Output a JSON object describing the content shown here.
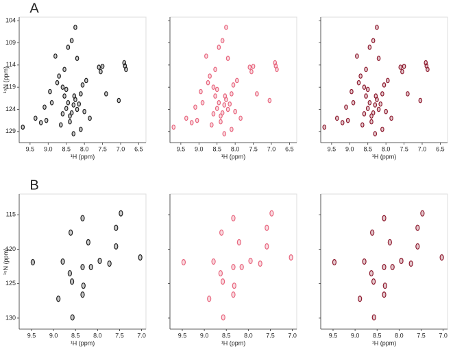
{
  "chart_data": [
    {
      "type": "scatter",
      "label": "A",
      "xlabel": "¹H (ppm)",
      "ylabel": "¹⁵N (ppm)",
      "xlim": [
        9.8,
        6.3
      ],
      "ylim": [
        131.5,
        103.2
      ],
      "xticks": [
        9.5,
        {
          "value": 9,
          "label": "9.0"
        },
        8.5,
        {
          "value": 8,
          "label": "8.0"
        },
        7.5,
        {
          "value": 7,
          "label": "7.0"
        },
        6.5
      ],
      "yticks": [
        104,
        109,
        114,
        119,
        124,
        129
      ],
      "series": [
        {
          "color": "#222222",
          "x": [
            8.45,
            8.3,
            8.25,
            8.2,
            8.35,
            8.4,
            8.5,
            8.15,
            8.1,
            8.55,
            8.6,
            8.05,
            7.95,
            8.7,
            8.8,
            9.05,
            9.2,
            9.35,
            9.7,
            8.9,
            8.65,
            8.0,
            7.85,
            7.6,
            7.55,
            7.5,
            6.9,
            6.85,
            6.88,
            8.25,
            8.35,
            8.45,
            8.2,
            8.55,
            8.75,
            8.3,
            8.1,
            7.4,
            7.05,
            8.6,
            8.4,
            8.95,
            9.1,
            8.5,
            8.28
          ],
          "values": [
            122.5,
            123.0,
            121.8,
            124.0,
            124.8,
            125.5,
            123.8,
            122.8,
            120.5,
            121.0,
            119.0,
            118.5,
            117.5,
            116.5,
            112.0,
            126.5,
            127.0,
            126.0,
            128.0,
            122.5,
            127.5,
            124.5,
            126.0,
            114.5,
            115.5,
            114.3,
            113.5,
            115.0,
            114.2,
            105.5,
            108.5,
            110.0,
            112.5,
            115.0,
            118.0,
            129.5,
            128.5,
            120.5,
            122.0,
            125.0,
            126.8,
            120.0,
            123.5,
            119.5,
            121.0
          ]
        },
        {
          "color": "#e8677f",
          "x": [
            8.45,
            8.3,
            8.25,
            8.2,
            8.35,
            8.4,
            8.5,
            8.15,
            8.1,
            8.55,
            8.6,
            8.05,
            7.95,
            8.7,
            8.8,
            9.05,
            9.2,
            9.35,
            9.7,
            8.9,
            8.65,
            8.0,
            7.85,
            7.6,
            7.55,
            7.5,
            6.9,
            6.85,
            6.88,
            8.25,
            8.35,
            8.45,
            8.2,
            8.55,
            8.75,
            8.3,
            8.1,
            7.4,
            7.05,
            8.6,
            8.4,
            8.95,
            9.1,
            8.5,
            8.28
          ],
          "values": [
            122.5,
            123.0,
            121.8,
            124.0,
            124.8,
            125.5,
            123.8,
            122.8,
            120.5,
            121.0,
            119.0,
            118.5,
            117.5,
            116.5,
            112.0,
            126.5,
            127.0,
            126.0,
            128.0,
            122.5,
            127.5,
            124.5,
            126.0,
            114.5,
            115.5,
            114.3,
            113.5,
            115.0,
            114.2,
            105.5,
            108.5,
            110.0,
            112.5,
            115.0,
            118.0,
            129.5,
            128.5,
            120.5,
            122.0,
            125.0,
            126.8,
            120.0,
            123.5,
            119.5,
            121.0
          ]
        },
        {
          "color": "#8e1c30",
          "x": [
            8.45,
            8.3,
            8.25,
            8.2,
            8.35,
            8.4,
            8.5,
            8.15,
            8.1,
            8.55,
            8.6,
            8.05,
            7.95,
            8.7,
            8.8,
            9.05,
            9.2,
            9.35,
            9.7,
            8.9,
            8.65,
            8.0,
            7.85,
            7.6,
            7.55,
            7.5,
            6.9,
            6.85,
            6.88,
            8.25,
            8.35,
            8.45,
            8.2,
            8.55,
            8.75,
            8.3,
            8.1,
            7.4,
            7.05,
            8.6,
            8.4,
            8.95,
            9.1,
            8.5,
            8.28
          ],
          "values": [
            122.5,
            123.0,
            121.8,
            124.0,
            124.8,
            125.5,
            123.8,
            122.8,
            120.5,
            121.0,
            119.0,
            118.5,
            117.5,
            116.5,
            112.0,
            126.5,
            127.0,
            126.0,
            128.0,
            122.5,
            127.5,
            124.5,
            126.0,
            114.5,
            115.5,
            114.3,
            113.5,
            115.0,
            114.2,
            105.5,
            108.5,
            110.0,
            112.5,
            115.0,
            118.0,
            129.5,
            128.5,
            120.5,
            122.0,
            125.0,
            126.8,
            120.0,
            123.5,
            119.5,
            121.0
          ]
        }
      ]
    },
    {
      "type": "scatter",
      "label": "B",
      "xlabel": "¹H (ppm)",
      "ylabel": "¹⁵N (ppm)",
      "xlim": [
        9.78,
        6.9
      ],
      "ylim": [
        131.6,
        112.0
      ],
      "xticks": [
        9.5,
        {
          "value": 9,
          "label": "9.0"
        },
        8.5,
        {
          "value": 8,
          "label": "8.0"
        },
        7.5,
        {
          "value": 7,
          "label": "7.0"
        }
      ],
      "yticks": [
        115,
        120,
        125,
        130
      ],
      "series": [
        {
          "color": "#222222",
          "x": [
            9.47,
            8.89,
            8.79,
            8.63,
            8.61,
            8.57,
            8.58,
            8.34,
            8.34,
            8.32,
            8.34,
            8.21,
            8.15,
            7.95,
            7.73,
            7.58,
            7.58,
            7.47,
            7.03
          ],
          "values": [
            121.9,
            127.2,
            121.8,
            123.5,
            117.6,
            129.9,
            124.7,
            115.5,
            122.6,
            125.3,
            126.6,
            119.0,
            122.6,
            121.7,
            122.1,
            116.9,
            119.6,
            114.8,
            121.2
          ]
        },
        {
          "color": "#e8677f",
          "x": [
            9.47,
            8.89,
            8.79,
            8.63,
            8.61,
            8.57,
            8.58,
            8.34,
            8.34,
            8.32,
            8.34,
            8.21,
            8.15,
            7.95,
            7.73,
            7.58,
            7.58,
            7.47,
            7.03
          ],
          "values": [
            121.9,
            127.2,
            121.8,
            123.5,
            117.6,
            129.9,
            124.7,
            115.5,
            122.6,
            125.3,
            126.6,
            119.0,
            122.6,
            121.7,
            122.1,
            116.9,
            119.6,
            114.8,
            121.2
          ]
        },
        {
          "color": "#8e1c30",
          "x": [
            9.47,
            8.89,
            8.79,
            8.63,
            8.61,
            8.57,
            8.58,
            8.34,
            8.34,
            8.32,
            8.34,
            8.21,
            8.15,
            7.95,
            7.73,
            7.58,
            7.58,
            7.47,
            7.03
          ],
          "values": [
            121.9,
            127.2,
            121.8,
            123.5,
            117.6,
            129.9,
            124.7,
            115.5,
            122.6,
            125.3,
            126.6,
            119.0,
            122.6,
            121.7,
            122.1,
            116.9,
            119.6,
            114.8,
            121.2
          ]
        }
      ]
    }
  ]
}
